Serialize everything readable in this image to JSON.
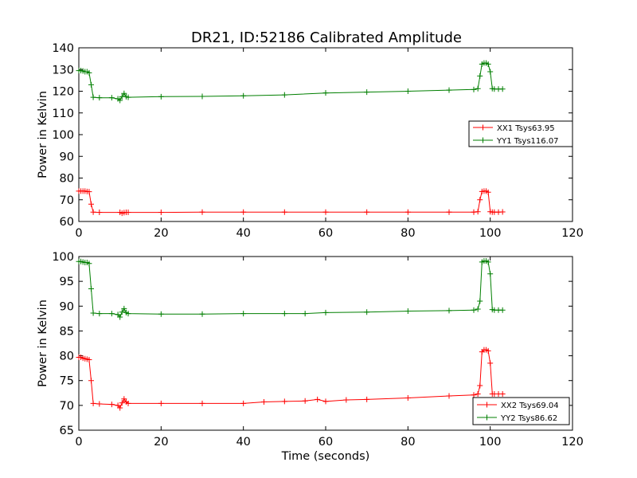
{
  "figure": {
    "title": "DR21, ID:52186 Calibrated Amplitude",
    "x_axis_label": "Time (seconds)",
    "colors": {
      "red": "#ff0000",
      "green": "#007f00"
    }
  },
  "chart_data": [
    {
      "type": "line",
      "title": "DR21, ID:52186 Calibrated Amplitude",
      "xlabel": "",
      "ylabel": "Power in Kelvin",
      "xlim": [
        0,
        120
      ],
      "ylim": [
        60,
        140
      ],
      "xticks": [
        0,
        20,
        40,
        60,
        80,
        100,
        120
      ],
      "yticks": [
        60,
        70,
        80,
        90,
        100,
        110,
        120,
        130,
        140
      ],
      "grid": false,
      "legend_position": "right",
      "marker": "+",
      "series": [
        {
          "name": "XX1 Tsys63.95",
          "color": "#ff0000",
          "x": [
            0,
            0.5,
            1,
            1.5,
            2,
            2.5,
            3,
            3.5,
            5,
            10,
            10.5,
            11,
            11.5,
            12,
            20,
            30,
            40,
            50,
            60,
            70,
            80,
            90,
            96,
            97,
            97.5,
            98,
            98.5,
            99,
            99.5,
            100,
            100.5,
            101,
            102,
            103
          ],
          "y": [
            74,
            74,
            74,
            74,
            73.8,
            73.7,
            68,
            64.3,
            64.2,
            64.2,
            63.8,
            64.1,
            64.2,
            64.2,
            64.2,
            64.3,
            64.3,
            64.3,
            64.3,
            64.3,
            64.3,
            64.3,
            64.3,
            64.5,
            70,
            73.8,
            74,
            74,
            73.5,
            64.5,
            64.3,
            64.3,
            64.3,
            64.4
          ]
        },
        {
          "name": "YY1 Tsys116.07",
          "color": "#007f00",
          "x": [
            0,
            0.5,
            1,
            1.5,
            2,
            2.5,
            3,
            3.5,
            5,
            8,
            9.5,
            10,
            10.5,
            11,
            11.5,
            12,
            20,
            30,
            40,
            50,
            60,
            70,
            80,
            90,
            96,
            97,
            97.5,
            98,
            98.5,
            99,
            99.5,
            100,
            100.5,
            101,
            102,
            103
          ],
          "y": [
            129.5,
            129.5,
            129.3,
            129,
            129,
            128.5,
            123,
            117.2,
            117,
            117,
            116.5,
            115.8,
            117.5,
            119,
            117.5,
            117.2,
            117.5,
            117.6,
            117.9,
            118.3,
            119.2,
            119.6,
            120,
            120.5,
            120.8,
            121.2,
            127,
            132.5,
            133,
            133,
            132.5,
            129,
            121.2,
            121,
            121,
            121
          ]
        }
      ]
    },
    {
      "type": "line",
      "title": "",
      "xlabel": "Time (seconds)",
      "ylabel": "Power in Kelvin",
      "xlim": [
        0,
        120
      ],
      "ylim": [
        65,
        100
      ],
      "xticks": [
        0,
        20,
        40,
        60,
        80,
        100,
        120
      ],
      "yticks": [
        65,
        70,
        75,
        80,
        85,
        90,
        95,
        100
      ],
      "grid": false,
      "legend_position": "lower right",
      "marker": "+",
      "series": [
        {
          "name": "XX2 Tsys69.04",
          "color": "#ff0000",
          "x": [
            0,
            0.5,
            1,
            1.5,
            2,
            2.5,
            3,
            3.5,
            5,
            8,
            9.5,
            10,
            10.5,
            11,
            11.5,
            12,
            20,
            30,
            40,
            45,
            50,
            55,
            58,
            60,
            65,
            70,
            80,
            90,
            96,
            97,
            97.5,
            98,
            98.5,
            99,
            99.5,
            100,
            100.5,
            101,
            102,
            103
          ],
          "y": [
            79.7,
            79.7,
            79.5,
            79.4,
            79.3,
            79.2,
            75,
            70.4,
            70.3,
            70.2,
            70,
            69.5,
            70.5,
            71.3,
            70.7,
            70.4,
            70.4,
            70.4,
            70.4,
            70.7,
            70.8,
            70.9,
            71.2,
            70.8,
            71.1,
            71.2,
            71.5,
            71.9,
            72.1,
            72.3,
            74,
            80.8,
            81.2,
            81.2,
            81,
            78.5,
            72.3,
            72.3,
            72.3,
            72.3
          ]
        },
        {
          "name": "YY2 Tsys86.62",
          "color": "#007f00",
          "x": [
            0,
            0.5,
            1,
            1.5,
            2,
            2.5,
            3,
            3.5,
            5,
            8,
            9.5,
            10,
            10.5,
            11,
            11.5,
            12,
            20,
            30,
            40,
            50,
            55,
            60,
            70,
            80,
            90,
            96,
            97,
            97.5,
            98,
            98.5,
            99,
            99.5,
            100,
            100.5,
            101,
            102,
            103
          ],
          "y": [
            99,
            99,
            98.9,
            98.8,
            98.8,
            98.6,
            93.5,
            88.6,
            88.5,
            88.5,
            88.3,
            87.8,
            88.8,
            89.5,
            88.7,
            88.5,
            88.4,
            88.4,
            88.5,
            88.5,
            88.5,
            88.7,
            88.8,
            89,
            89.1,
            89.2,
            89.4,
            91,
            98.9,
            99.1,
            99.1,
            98.9,
            96.5,
            89.3,
            89.2,
            89.2,
            89.2
          ]
        }
      ]
    }
  ]
}
